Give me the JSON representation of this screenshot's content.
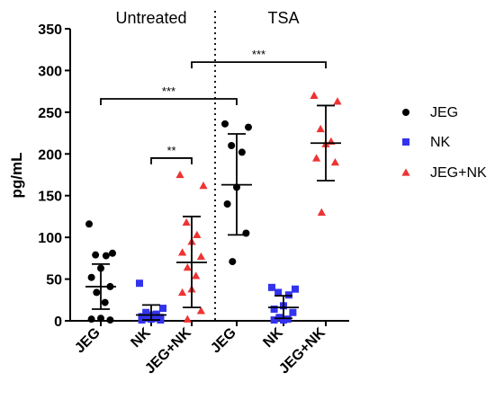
{
  "chart_data": {
    "type": "scatter",
    "ylabel": "pg/mL",
    "ylim": [
      0,
      350
    ],
    "yticks": [
      0,
      50,
      100,
      150,
      200,
      250,
      300,
      350
    ],
    "grid": false,
    "legend_position": "right",
    "group_labels": [
      "Untreated",
      "TSA"
    ],
    "categories": [
      "JEG",
      "NK",
      "JEG+NK",
      "JEG",
      "NK",
      "JEG+NK"
    ],
    "legend": [
      {
        "name": "JEG",
        "marker": "circle",
        "color": "#000000"
      },
      {
        "name": "NK",
        "marker": "square",
        "color": "#3333ee"
      },
      {
        "name": "JEG+NK",
        "marker": "triangle",
        "color": "#ee3333"
      }
    ],
    "series": [
      {
        "legend_index": 0,
        "category_index": 0,
        "mean": 41,
        "sd_low": 14,
        "sd_high": 68,
        "points": [
          116,
          81,
          79,
          78,
          63,
          52,
          41,
          34,
          22,
          3,
          2,
          1
        ]
      },
      {
        "legend_index": 1,
        "category_index": 1,
        "mean": 7,
        "sd_low": 1,
        "sd_high": 19,
        "points": [
          45,
          15,
          10,
          8,
          7,
          5,
          4,
          3,
          3,
          2,
          1,
          1
        ]
      },
      {
        "legend_index": 2,
        "category_index": 2,
        "mean": 70,
        "sd_low": 16,
        "sd_high": 125,
        "points": [
          175,
          162,
          118,
          103,
          95,
          82,
          77,
          64,
          54,
          38,
          34,
          12,
          2
        ]
      },
      {
        "legend_index": 0,
        "category_index": 3,
        "mean": 163,
        "sd_low": 103,
        "sd_high": 224,
        "points": [
          236,
          232,
          210,
          202,
          160,
          140,
          105,
          71
        ]
      },
      {
        "legend_index": 1,
        "category_index": 4,
        "mean": 16,
        "sd_low": 3,
        "sd_high": 30,
        "points": [
          40,
          38,
          34,
          31,
          18,
          14,
          10,
          4,
          2,
          1,
          1
        ]
      },
      {
        "legend_index": 2,
        "category_index": 5,
        "mean": 213,
        "sd_low": 168,
        "sd_high": 258,
        "points": [
          270,
          263,
          230,
          215,
          212,
          195,
          190,
          130
        ]
      }
    ],
    "significance": [
      {
        "label": "**",
        "from_index": 1,
        "to_index": 2,
        "y": 195
      },
      {
        "label": "***",
        "from_index": 0,
        "to_index": 3,
        "y": 266
      },
      {
        "label": "***",
        "from_index": 2,
        "to_index": 5,
        "y": 310
      }
    ]
  }
}
